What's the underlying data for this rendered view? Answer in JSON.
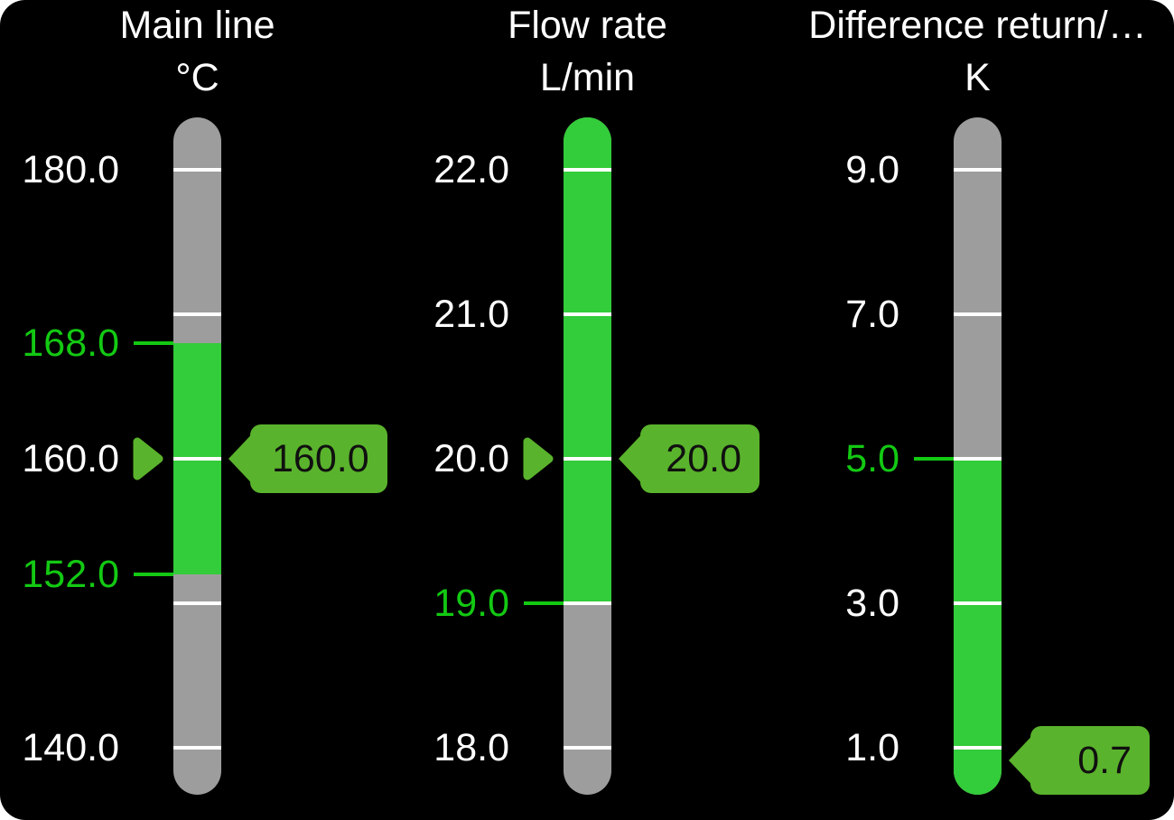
{
  "panel": {
    "background": "#000000",
    "page_background": "#ffffff"
  },
  "colors": {
    "bar_gray": "#9d9d9d",
    "bar_green": "#33cc3a",
    "limit_green": "#13c913",
    "indicator_green": "#5ab32c",
    "tick_white": "#ffffff",
    "label_white": "#ffffff",
    "tag_text_dark": "#101010"
  },
  "gauges": [
    {
      "title": "Main line",
      "unit": "°C",
      "value": 160.0,
      "tag_text": "160.0",
      "scale": {
        "min": 140,
        "max": 180,
        "tick_step": 10,
        "labels": [
          {
            "text": "180.0",
            "value": 180,
            "kind": "normal"
          },
          {
            "text": "168.0",
            "value": 168,
            "kind": "limit"
          },
          {
            "text": "160.0",
            "value": 160,
            "kind": "normal"
          },
          {
            "text": "152.0",
            "value": 152,
            "kind": "limit"
          },
          {
            "text": "140.0",
            "value": 140,
            "kind": "normal"
          }
        ]
      },
      "good_range": {
        "low": 152,
        "high": 168
      },
      "pointer": true
    },
    {
      "title": "Flow rate",
      "unit": "L/min",
      "value": 20.0,
      "tag_text": "20.0",
      "scale": {
        "min": 18,
        "max": 22,
        "tick_step": 1,
        "labels": [
          {
            "text": "22.0",
            "value": 22,
            "kind": "normal"
          },
          {
            "text": "21.0",
            "value": 21,
            "kind": "normal"
          },
          {
            "text": "20.0",
            "value": 20,
            "kind": "normal"
          },
          {
            "text": "19.0",
            "value": 19,
            "kind": "limit"
          },
          {
            "text": "18.0",
            "value": 18,
            "kind": "normal"
          }
        ]
      },
      "good_range": {
        "low": 19,
        "high": null
      },
      "pointer": true
    },
    {
      "title": "Difference return/…",
      "unit": "K",
      "value": 0.7,
      "tag_text": "0.7",
      "scale": {
        "min": 1,
        "max": 9,
        "tick_step": 2,
        "labels": [
          {
            "text": "9.0",
            "value": 9,
            "kind": "normal"
          },
          {
            "text": "7.0",
            "value": 7,
            "kind": "normal"
          },
          {
            "text": "5.0",
            "value": 5,
            "kind": "limit"
          },
          {
            "text": "3.0",
            "value": 3,
            "kind": "normal"
          },
          {
            "text": "1.0",
            "value": 1,
            "kind": "normal"
          }
        ]
      },
      "good_range": {
        "low": null,
        "high": 5
      },
      "pointer": false
    }
  ],
  "chart_data": [
    {
      "type": "bar",
      "title": "Main line",
      "ylabel": "°C",
      "value": 160.0,
      "ylim": [
        140,
        180
      ],
      "good_range": [
        152,
        168
      ],
      "tick_labels": [
        "180.0",
        "168.0",
        "160.0",
        "152.0",
        "140.0"
      ]
    },
    {
      "type": "bar",
      "title": "Flow rate",
      "ylabel": "L/min",
      "value": 20.0,
      "ylim": [
        18,
        22
      ],
      "good_range": [
        19,
        22
      ],
      "tick_labels": [
        "22.0",
        "21.0",
        "20.0",
        "19.0",
        "18.0"
      ]
    },
    {
      "type": "bar",
      "title": "Difference return/…",
      "ylabel": "K",
      "value": 0.7,
      "ylim": [
        1,
        9
      ],
      "good_range": [
        1,
        5
      ],
      "tick_labels": [
        "9.0",
        "7.0",
        "5.0",
        "3.0",
        "1.0"
      ]
    }
  ]
}
